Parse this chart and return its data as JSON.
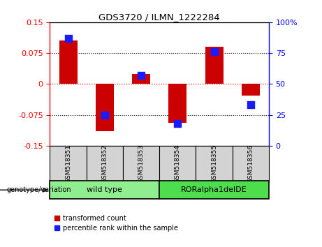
{
  "title": "GDS3720 / ILMN_1222284",
  "samples": [
    "GSM518351",
    "GSM518352",
    "GSM518353",
    "GSM518354",
    "GSM518355",
    "GSM518356"
  ],
  "red_values": [
    0.105,
    -0.115,
    0.025,
    -0.095,
    0.09,
    -0.028
  ],
  "blue_values_pct": [
    87,
    25,
    57,
    18,
    76,
    33
  ],
  "ylim_left": [
    -0.15,
    0.15
  ],
  "ylim_right": [
    0,
    100
  ],
  "left_ticks": [
    -0.15,
    -0.075,
    0,
    0.075,
    0.15
  ],
  "right_ticks": [
    0,
    25,
    50,
    75,
    100
  ],
  "red_color": "#cc0000",
  "blue_color": "#1a1aff",
  "bar_width": 0.5,
  "legend_red": "transformed count",
  "legend_blue": "percentile rank within the sample",
  "genotype_label": "genotype/variation",
  "wt_label": "wild type",
  "mut_label": "RORalpha1delDE",
  "wt_color": "#90ee90",
  "mut_color": "#4ddd4d",
  "sample_bg": "#d3d3d3"
}
